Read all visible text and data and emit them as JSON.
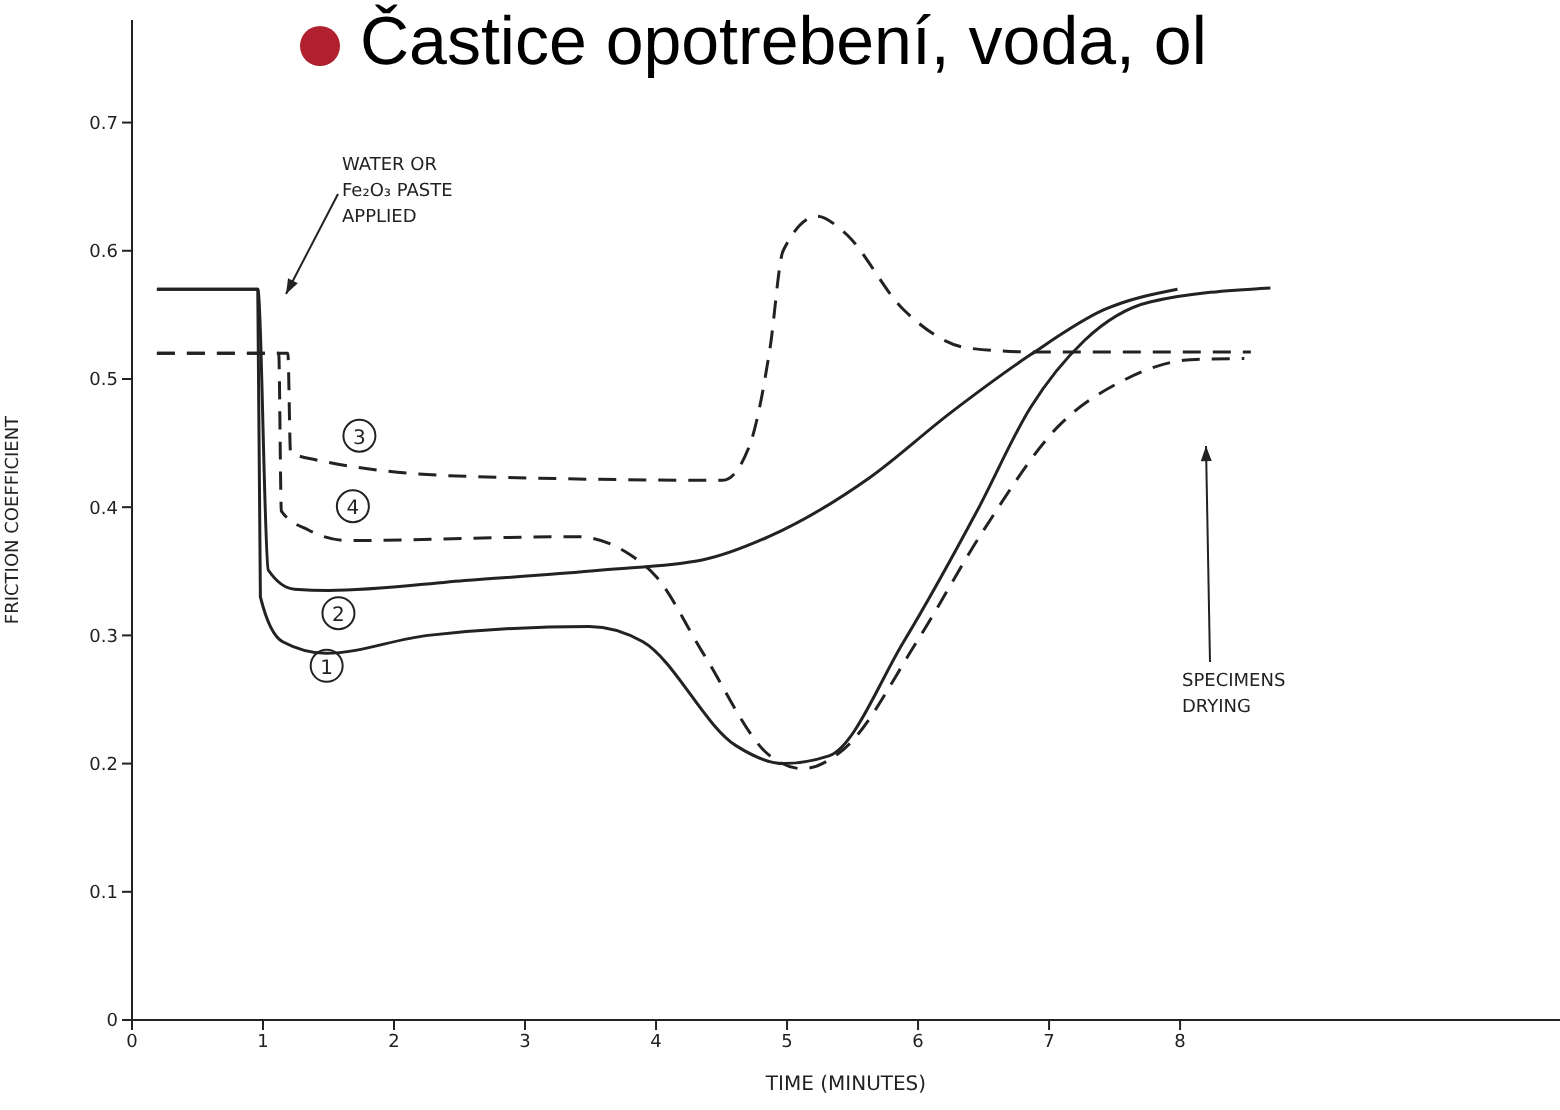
{
  "chart_data": {
    "type": "line",
    "title": "Častice opotrebení, voda, ol",
    "xlabel": "TIME (MINUTES)",
    "ylabel": "FRICTION COEFFICIENT",
    "xlim": [
      0,
      10.9
    ],
    "xticks": [
      0,
      1,
      2,
      3,
      4,
      5,
      6,
      7,
      8
    ],
    "ylim": [
      0,
      0.78
    ],
    "yticks": [
      0,
      0.1,
      0.2,
      0.3,
      0.4,
      0.5,
      0.6,
      0.7
    ],
    "grid": false,
    "legend": false,
    "marker": "none",
    "series": [
      {
        "name": "1",
        "color": "#222222",
        "line_style": "solid",
        "x": [
          0.19,
          0.96,
          0.98,
          1.15,
          1.48,
          2.26,
          3.49,
          3.9,
          4.61,
          4.97,
          5.32,
          5.89,
          6.45,
          6.86,
          7.27,
          7.77,
          8.69
        ],
        "values": [
          0.57,
          0.57,
          0.33,
          0.295,
          0.286,
          0.3,
          0.307,
          0.295,
          0.214,
          0.2,
          0.206,
          0.295,
          0.397,
          0.478,
          0.53,
          0.56,
          0.571
        ]
      },
      {
        "name": "2",
        "color": "#222222",
        "line_style": "solid",
        "x": [
          0.19,
          0.96,
          1.04,
          1.24,
          1.5,
          2.57,
          3.59,
          4.36,
          4.86,
          5.63,
          6.24,
          6.86,
          7.42,
          7.98
        ],
        "values": [
          0.57,
          0.57,
          0.351,
          0.336,
          0.335,
          0.343,
          0.351,
          0.359,
          0.377,
          0.423,
          0.473,
          0.519,
          0.554,
          0.57
        ]
      },
      {
        "name": "3",
        "color": "#222222",
        "line_style": "dashed",
        "x": [
          0.19,
          1.19,
          1.21,
          1.4,
          2.57,
          4.51,
          4.71,
          4.87,
          4.97,
          5.23,
          5.43,
          5.89,
          6.39,
          6.91,
          8.54
        ],
        "values": [
          0.52,
          0.52,
          0.443,
          0.437,
          0.424,
          0.421,
          0.447,
          0.524,
          0.6,
          0.627,
          0.615,
          0.554,
          0.524,
          0.521,
          0.521
        ]
      },
      {
        "name": "4",
        "color": "#222222",
        "line_style": "dashed",
        "x": [
          0.19,
          1.12,
          1.14,
          1.35,
          1.65,
          3.39,
          3.8,
          4.0,
          4.36,
          4.87,
          5.12,
          5.43,
          5.99,
          6.5,
          7.07,
          7.57,
          8.08,
          8.49
        ],
        "values": [
          0.52,
          0.52,
          0.397,
          0.382,
          0.374,
          0.377,
          0.363,
          0.346,
          0.286,
          0.206,
          0.196,
          0.211,
          0.295,
          0.382,
          0.463,
          0.499,
          0.515,
          0.516
        ]
      }
    ],
    "annotations": [
      "WATER OR\nFe₂O₃ PASTE\nAPPLIED",
      "SPECIMENS\nDRYING"
    ]
  }
}
